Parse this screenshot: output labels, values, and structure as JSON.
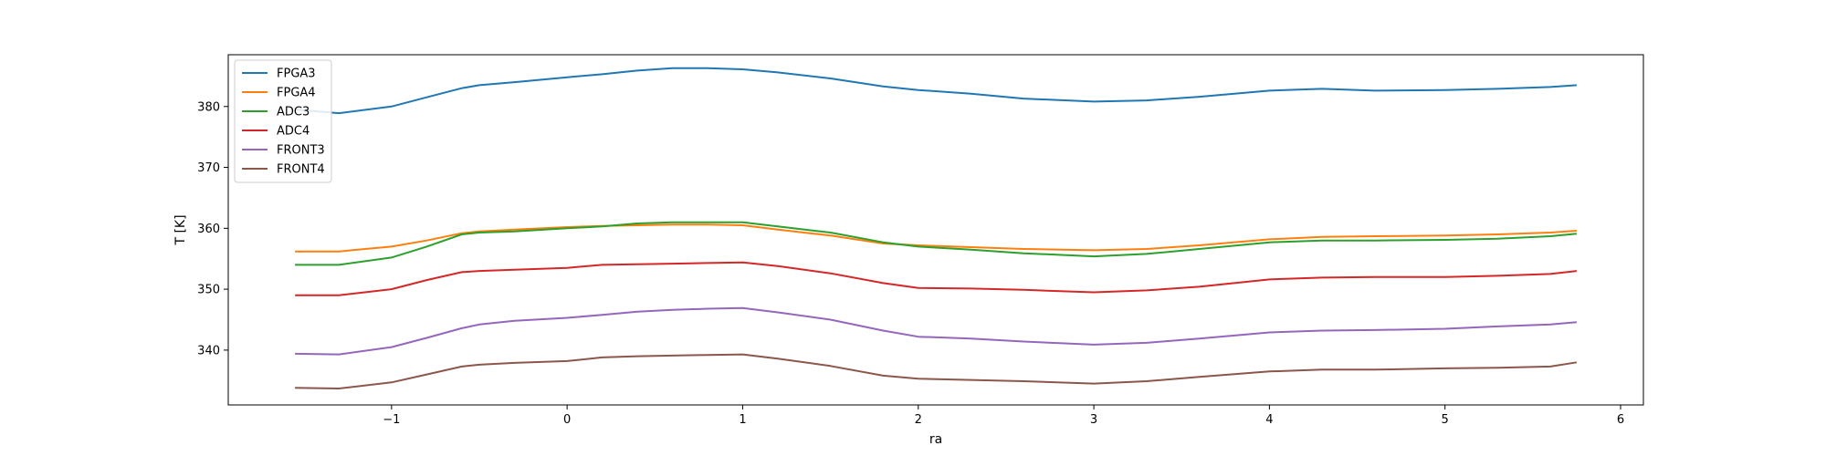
{
  "chart_data": {
    "type": "line",
    "title": "",
    "xlabel": "ra",
    "ylabel": "T [K]",
    "xlim": [
      -1.93,
      6.13
    ],
    "ylim": [
      331,
      388.5
    ],
    "xticks": [
      -1,
      0,
      1,
      2,
      3,
      4,
      5,
      6
    ],
    "xtick_labels": [
      "−1",
      "0",
      "1",
      "2",
      "3",
      "4",
      "5",
      "6"
    ],
    "yticks": [
      340,
      350,
      360,
      370,
      380
    ],
    "ytick_labels": [
      "340",
      "350",
      "360",
      "370",
      "380"
    ],
    "grid": false,
    "legend_position": "top-left",
    "x": [
      -1.55,
      -1.3,
      -1.0,
      -0.8,
      -0.6,
      -0.5,
      -0.3,
      0.0,
      0.2,
      0.4,
      0.6,
      0.8,
      1.0,
      1.2,
      1.5,
      1.8,
      2.0,
      2.3,
      2.6,
      3.0,
      3.3,
      3.6,
      4.0,
      4.3,
      4.6,
      5.0,
      5.3,
      5.6,
      5.75
    ],
    "series": [
      {
        "name": "FPGA3",
        "color": "#1f77b4",
        "values": [
          379.5,
          378.9,
          380.0,
          381.5,
          383.0,
          383.5,
          384.0,
          384.8,
          385.3,
          385.9,
          386.3,
          386.3,
          386.1,
          385.6,
          384.6,
          383.3,
          382.7,
          382.1,
          381.3,
          380.8,
          381.0,
          381.6,
          382.6,
          382.9,
          382.6,
          382.7,
          382.9,
          383.2,
          383.5
        ]
      },
      {
        "name": "FPGA4",
        "color": "#ff7f0e",
        "values": [
          356.2,
          356.2,
          357.0,
          358.0,
          359.2,
          359.5,
          359.8,
          360.2,
          360.4,
          360.5,
          360.6,
          360.6,
          360.5,
          359.8,
          358.8,
          357.5,
          357.2,
          356.9,
          356.6,
          356.4,
          356.6,
          357.2,
          358.2,
          358.6,
          358.7,
          358.8,
          359.0,
          359.3,
          359.6
        ]
      },
      {
        "name": "ADC3",
        "color": "#2ca02c",
        "values": [
          354.0,
          354.0,
          355.2,
          357.0,
          359.0,
          359.3,
          359.5,
          360.0,
          360.3,
          360.8,
          361.0,
          361.0,
          361.0,
          360.3,
          359.3,
          357.7,
          357.0,
          356.5,
          355.9,
          355.4,
          355.8,
          356.6,
          357.7,
          358.0,
          358.0,
          358.1,
          358.3,
          358.7,
          359.1
        ]
      },
      {
        "name": "ADC4",
        "color": "#d62728",
        "values": [
          349.0,
          349.0,
          350.0,
          351.5,
          352.8,
          353.0,
          353.2,
          353.5,
          354.0,
          354.1,
          354.2,
          354.3,
          354.4,
          353.8,
          352.6,
          351.0,
          350.2,
          350.1,
          349.9,
          349.5,
          349.8,
          350.4,
          351.6,
          351.9,
          352.0,
          352.0,
          352.2,
          352.5,
          353.0
        ]
      },
      {
        "name": "FRONT3",
        "color": "#9467bd",
        "values": [
          339.4,
          339.3,
          340.5,
          342.0,
          343.6,
          344.2,
          344.8,
          345.3,
          345.8,
          346.3,
          346.6,
          346.8,
          346.9,
          346.2,
          345.0,
          343.2,
          342.2,
          341.9,
          341.4,
          340.9,
          341.2,
          341.9,
          342.9,
          343.2,
          343.3,
          343.5,
          343.9,
          344.2,
          344.6
        ]
      },
      {
        "name": "FRONT4",
        "color": "#8c564b",
        "values": [
          333.8,
          333.7,
          334.7,
          336.0,
          337.3,
          337.6,
          337.9,
          338.2,
          338.8,
          339.0,
          339.1,
          339.2,
          339.3,
          338.6,
          337.4,
          335.8,
          335.3,
          335.1,
          334.9,
          334.5,
          334.9,
          335.6,
          336.5,
          336.8,
          336.8,
          337.0,
          337.1,
          337.3,
          338.0
        ]
      }
    ]
  }
}
